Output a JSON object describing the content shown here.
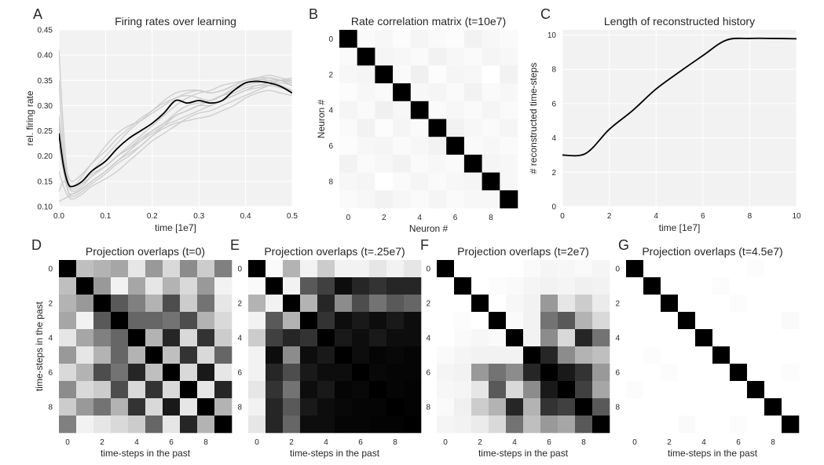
{
  "chart_data": [
    {
      "panel": "A",
      "type": "line",
      "title": "Firing rates over learning",
      "xlabel": "time [1e7]",
      "ylabel": "rel. firing rate",
      "xlim": [
        0.0,
        0.5
      ],
      "ylim": [
        0.1,
        0.45
      ],
      "xticks": [
        "0.0",
        "0.1",
        "0.2",
        "0.3",
        "0.4",
        "0.5"
      ],
      "yticks": [
        "0.10",
        "0.15",
        "0.20",
        "0.25",
        "0.30",
        "0.35",
        "0.40",
        "0.45"
      ],
      "grid": true,
      "x": [
        0.0,
        0.01,
        0.02,
        0.03,
        0.05,
        0.07,
        0.1,
        0.125,
        0.15,
        0.175,
        0.2,
        0.225,
        0.25,
        0.275,
        0.3,
        0.325,
        0.35,
        0.375,
        0.4,
        0.425,
        0.45,
        0.475,
        0.5
      ],
      "series": [
        {
          "role": "mean",
          "color": "#000000",
          "values": [
            0.245,
            0.18,
            0.145,
            0.14,
            0.15,
            0.17,
            0.19,
            0.215,
            0.235,
            0.25,
            0.265,
            0.285,
            0.31,
            0.305,
            0.31,
            0.305,
            0.31,
            0.33,
            0.345,
            0.348,
            0.345,
            0.338,
            0.325
          ]
        },
        {
          "role": "neuron",
          "color": "#c8c8c8",
          "values": [
            0.41,
            0.25,
            0.15,
            0.135,
            0.145,
            0.16,
            0.18,
            0.2,
            0.215,
            0.235,
            0.25,
            0.265,
            0.285,
            0.3,
            0.305,
            0.31,
            0.32,
            0.325,
            0.335,
            0.34,
            0.34,
            0.335,
            0.33
          ]
        },
        {
          "role": "neuron",
          "color": "#c8c8c8",
          "values": [
            0.35,
            0.21,
            0.13,
            0.12,
            0.13,
            0.145,
            0.165,
            0.185,
            0.2,
            0.22,
            0.24,
            0.26,
            0.28,
            0.29,
            0.3,
            0.3,
            0.31,
            0.32,
            0.33,
            0.335,
            0.34,
            0.345,
            0.34
          ]
        },
        {
          "role": "neuron",
          "color": "#c8c8c8",
          "values": [
            0.28,
            0.2,
            0.16,
            0.15,
            0.165,
            0.185,
            0.22,
            0.245,
            0.26,
            0.27,
            0.285,
            0.3,
            0.315,
            0.32,
            0.315,
            0.31,
            0.32,
            0.335,
            0.345,
            0.35,
            0.355,
            0.35,
            0.34
          ]
        },
        {
          "role": "neuron",
          "color": "#c8c8c8",
          "values": [
            0.22,
            0.17,
            0.145,
            0.14,
            0.15,
            0.17,
            0.2,
            0.225,
            0.25,
            0.27,
            0.29,
            0.305,
            0.315,
            0.325,
            0.33,
            0.325,
            0.33,
            0.34,
            0.35,
            0.355,
            0.36,
            0.355,
            0.35
          ]
        },
        {
          "role": "neuron",
          "color": "#c8c8c8",
          "values": [
            0.17,
            0.14,
            0.12,
            0.115,
            0.125,
            0.14,
            0.155,
            0.17,
            0.19,
            0.21,
            0.23,
            0.245,
            0.26,
            0.275,
            0.285,
            0.29,
            0.3,
            0.31,
            0.32,
            0.33,
            0.34,
            0.35,
            0.345
          ]
        },
        {
          "role": "neuron",
          "color": "#c8c8c8",
          "values": [
            0.11,
            0.115,
            0.12,
            0.125,
            0.135,
            0.15,
            0.17,
            0.19,
            0.21,
            0.23,
            0.25,
            0.265,
            0.28,
            0.29,
            0.3,
            0.31,
            0.32,
            0.33,
            0.34,
            0.345,
            0.35,
            0.35,
            0.345
          ]
        },
        {
          "role": "neuron",
          "color": "#c8c8c8",
          "values": [
            0.27,
            0.19,
            0.15,
            0.14,
            0.15,
            0.165,
            0.18,
            0.2,
            0.22,
            0.24,
            0.26,
            0.28,
            0.3,
            0.315,
            0.325,
            0.33,
            0.34,
            0.345,
            0.35,
            0.352,
            0.35,
            0.34,
            0.33
          ]
        },
        {
          "role": "neuron",
          "color": "#c8c8c8",
          "values": [
            0.13,
            0.15,
            0.14,
            0.13,
            0.14,
            0.16,
            0.18,
            0.2,
            0.215,
            0.23,
            0.245,
            0.26,
            0.27,
            0.28,
            0.29,
            0.3,
            0.31,
            0.32,
            0.33,
            0.34,
            0.345,
            0.35,
            0.355
          ]
        },
        {
          "role": "neuron",
          "color": "#c8c8c8",
          "values": [
            0.24,
            0.17,
            0.13,
            0.125,
            0.135,
            0.15,
            0.17,
            0.19,
            0.205,
            0.22,
            0.24,
            0.255,
            0.265,
            0.27,
            0.275,
            0.28,
            0.29,
            0.3,
            0.315,
            0.325,
            0.33,
            0.325,
            0.32
          ]
        },
        {
          "role": "neuron",
          "color": "#c8c8c8",
          "values": [
            0.26,
            0.19,
            0.15,
            0.14,
            0.16,
            0.185,
            0.21,
            0.235,
            0.255,
            0.275,
            0.29,
            0.31,
            0.325,
            0.33,
            0.33,
            0.325,
            0.33,
            0.34,
            0.35,
            0.355,
            0.355,
            0.35,
            0.35
          ]
        }
      ]
    },
    {
      "panel": "B",
      "type": "heatmap",
      "title": "Rate correlation matrix (t=10e7)",
      "xlabel": "Neuron #",
      "ylabel": "Neuron #",
      "xticks": [
        "0",
        "2",
        "4",
        "6",
        "8"
      ],
      "yticks": [
        "0",
        "2",
        "4",
        "6",
        "8"
      ],
      "colormap": "gray_r",
      "vmin": 0,
      "vmax": 1,
      "matrix": [
        [
          1.0,
          0.02,
          0.03,
          0.01,
          0.04,
          0.02,
          0.01,
          0.05,
          0.03,
          0.02
        ],
        [
          0.02,
          1.0,
          0.04,
          0.03,
          0.02,
          0.05,
          0.03,
          0.02,
          0.04,
          0.03
        ],
        [
          0.03,
          0.04,
          1.0,
          0.02,
          0.06,
          0.01,
          0.04,
          0.03,
          0.0,
          0.05
        ],
        [
          0.01,
          0.03,
          0.02,
          1.0,
          0.03,
          0.04,
          0.02,
          0.05,
          0.02,
          0.03
        ],
        [
          0.04,
          0.02,
          0.06,
          0.03,
          1.0,
          0.02,
          0.03,
          0.02,
          0.04,
          0.02
        ],
        [
          0.02,
          0.05,
          0.01,
          0.04,
          0.02,
          1.0,
          0.05,
          0.03,
          0.02,
          0.04
        ],
        [
          0.01,
          0.03,
          0.04,
          0.02,
          0.03,
          0.05,
          1.0,
          0.02,
          0.03,
          0.02
        ],
        [
          0.05,
          0.02,
          0.03,
          0.05,
          0.02,
          0.03,
          0.02,
          1.0,
          0.04,
          0.03
        ],
        [
          0.03,
          0.04,
          0.0,
          0.02,
          0.04,
          0.02,
          0.03,
          0.04,
          1.0,
          0.03
        ],
        [
          0.02,
          0.03,
          0.05,
          0.03,
          0.02,
          0.04,
          0.02,
          0.03,
          0.03,
          1.0
        ]
      ]
    },
    {
      "panel": "C",
      "type": "line",
      "title": "Length of reconstructed history",
      "xlabel": "time [1e7]",
      "ylabel": "# reconstructed time-steps",
      "xlim": [
        0,
        10
      ],
      "ylim": [
        0,
        10.3
      ],
      "xticks": [
        "0",
        "2",
        "4",
        "6",
        "8",
        "10"
      ],
      "yticks": [
        "0",
        "2",
        "4",
        "6",
        "8",
        "10"
      ],
      "grid": true,
      "x": [
        0,
        1,
        2,
        3,
        4,
        5,
        6,
        7,
        8,
        9,
        10
      ],
      "series": [
        {
          "color": "#000000",
          "values": [
            3.0,
            3.1,
            4.5,
            5.6,
            6.85,
            7.85,
            8.8,
            9.7,
            9.8,
            9.8,
            9.78
          ]
        }
      ]
    },
    {
      "panel": "D",
      "type": "heatmap",
      "title": "Projection overlaps (t=0)",
      "xlabel": "time-steps in the past",
      "ylabel": "time-steps in the past",
      "xticks": [
        "0",
        "2",
        "4",
        "6",
        "8"
      ],
      "yticks": [
        "0",
        "2",
        "4",
        "6",
        "8"
      ],
      "colormap": "gray_r",
      "vmin": 0,
      "vmax": 1,
      "matrix": [
        [
          1.0,
          0.25,
          0.3,
          0.35,
          0.1,
          0.4,
          0.15,
          0.45,
          0.2,
          0.5
        ],
        [
          0.25,
          1.0,
          0.4,
          0.05,
          0.35,
          0.1,
          0.3,
          0.15,
          0.4,
          0.05
        ],
        [
          0.3,
          0.4,
          1.0,
          0.65,
          0.5,
          0.3,
          0.7,
          0.2,
          0.55,
          0.1
        ],
        [
          0.35,
          0.05,
          0.65,
          1.0,
          0.6,
          0.6,
          0.55,
          0.7,
          0.3,
          0.15
        ],
        [
          0.1,
          0.35,
          0.5,
          0.6,
          1.0,
          0.3,
          0.85,
          0.15,
          0.8,
          0.2
        ],
        [
          0.4,
          0.1,
          0.3,
          0.6,
          0.3,
          1.0,
          0.25,
          0.8,
          0.15,
          0.6
        ],
        [
          0.15,
          0.3,
          0.7,
          0.55,
          0.85,
          0.25,
          1.0,
          0.15,
          0.9,
          0.1
        ],
        [
          0.45,
          0.15,
          0.2,
          0.7,
          0.15,
          0.8,
          0.15,
          1.0,
          0.1,
          0.85
        ],
        [
          0.2,
          0.4,
          0.55,
          0.3,
          0.8,
          0.15,
          0.9,
          0.1,
          1.0,
          0.3
        ],
        [
          0.5,
          0.05,
          0.1,
          0.15,
          0.2,
          0.6,
          0.1,
          0.85,
          0.3,
          1.0
        ]
      ]
    },
    {
      "panel": "E",
      "type": "heatmap",
      "title": "Projection overlaps (t=.25e7)",
      "xlabel": "time-steps in the past",
      "ylabel": "",
      "xticks": [
        "0",
        "2",
        "4",
        "6",
        "8"
      ],
      "yticks": [
        "0",
        "2",
        "4",
        "6",
        "8"
      ],
      "colormap": "gray_r",
      "vmin": 0,
      "vmax": 1,
      "matrix": [
        [
          1.0,
          0.02,
          0.3,
          0.05,
          0.2,
          0.05,
          0.05,
          0.1,
          0.05,
          0.1
        ],
        [
          0.02,
          1.0,
          0.05,
          0.65,
          0.75,
          0.95,
          0.85,
          0.8,
          0.85,
          0.85
        ],
        [
          0.3,
          0.05,
          1.0,
          0.3,
          0.85,
          0.45,
          0.7,
          0.55,
          0.65,
          0.6
        ],
        [
          0.05,
          0.65,
          0.3,
          1.0,
          0.8,
          0.95,
          0.9,
          0.95,
          0.9,
          0.95
        ],
        [
          0.2,
          0.75,
          0.85,
          0.8,
          1.0,
          0.9,
          0.95,
          0.9,
          0.95,
          0.95
        ],
        [
          0.05,
          0.95,
          0.45,
          0.95,
          0.9,
          1.0,
          0.95,
          0.98,
          0.97,
          0.98
        ],
        [
          0.05,
          0.85,
          0.7,
          0.9,
          0.95,
          0.95,
          1.0,
          0.97,
          0.98,
          0.98
        ],
        [
          0.1,
          0.8,
          0.55,
          0.95,
          0.9,
          0.98,
          0.97,
          1.0,
          0.98,
          0.99
        ],
        [
          0.05,
          0.85,
          0.65,
          0.9,
          0.95,
          0.97,
          0.98,
          0.98,
          1.0,
          0.99
        ],
        [
          0.1,
          0.85,
          0.6,
          0.95,
          0.95,
          0.98,
          0.98,
          0.99,
          0.99,
          1.0
        ]
      ]
    },
    {
      "panel": "F",
      "type": "heatmap",
      "title": "Projection overlaps (t=2e7)",
      "xlabel": "time-steps in the past",
      "ylabel": "",
      "xticks": [
        "0",
        "2",
        "4",
        "6",
        "8"
      ],
      "yticks": [
        "0",
        "2",
        "4",
        "6",
        "8"
      ],
      "colormap": "gray_r",
      "vmin": 0,
      "vmax": 1,
      "matrix": [
        [
          1.0,
          0.0,
          0.0,
          0.0,
          0.0,
          0.02,
          0.04,
          0.03,
          0.02,
          0.04
        ],
        [
          0.0,
          1.0,
          0.0,
          0.01,
          0.02,
          0.04,
          0.05,
          0.04,
          0.06,
          0.05
        ],
        [
          0.0,
          0.0,
          1.0,
          0.0,
          0.03,
          0.05,
          0.4,
          0.1,
          0.2,
          0.08
        ],
        [
          0.0,
          0.01,
          0.0,
          1.0,
          0.02,
          0.05,
          0.55,
          0.65,
          0.3,
          0.15
        ],
        [
          0.0,
          0.02,
          0.03,
          0.02,
          1.0,
          0.05,
          0.45,
          0.15,
          0.85,
          0.55
        ],
        [
          0.02,
          0.04,
          0.05,
          0.05,
          0.05,
          1.0,
          0.85,
          0.45,
          0.3,
          0.25
        ],
        [
          0.04,
          0.05,
          0.4,
          0.55,
          0.45,
          0.85,
          1.0,
          0.9,
          0.8,
          0.4
        ],
        [
          0.03,
          0.04,
          0.1,
          0.65,
          0.15,
          0.45,
          0.9,
          1.0,
          0.75,
          0.35
        ],
        [
          0.02,
          0.06,
          0.2,
          0.3,
          0.85,
          0.3,
          0.8,
          0.75,
          1.0,
          0.65
        ],
        [
          0.04,
          0.05,
          0.08,
          0.15,
          0.55,
          0.25,
          0.4,
          0.35,
          0.65,
          1.0
        ]
      ]
    },
    {
      "panel": "G",
      "type": "heatmap",
      "title": "Projection overlaps (t=4.5e7)",
      "xlabel": "time-steps in the past",
      "ylabel": "",
      "xticks": [
        "0",
        "2",
        "4",
        "6",
        "8"
      ],
      "yticks": [
        "0",
        "2",
        "4",
        "6",
        "8"
      ],
      "colormap": "gray_r",
      "vmin": 0,
      "vmax": 1,
      "matrix": [
        [
          1.0,
          0.0,
          0.0,
          0.0,
          0.0,
          0.0,
          0.0,
          0.01,
          0.0,
          0.0
        ],
        [
          0.0,
          1.0,
          0.0,
          0.0,
          0.0,
          0.01,
          0.0,
          0.0,
          0.0,
          0.0
        ],
        [
          0.0,
          0.0,
          1.0,
          0.0,
          0.0,
          0.0,
          0.01,
          0.0,
          0.0,
          0.0
        ],
        [
          0.0,
          0.0,
          0.0,
          1.0,
          0.0,
          0.0,
          0.0,
          0.0,
          0.0,
          0.02
        ],
        [
          0.0,
          0.0,
          0.0,
          0.0,
          1.0,
          0.0,
          0.0,
          0.0,
          0.0,
          0.0
        ],
        [
          0.0,
          0.01,
          0.0,
          0.0,
          0.0,
          1.0,
          0.0,
          0.0,
          0.0,
          0.0
        ],
        [
          0.0,
          0.0,
          0.01,
          0.0,
          0.0,
          0.0,
          1.0,
          0.0,
          0.0,
          0.01
        ],
        [
          0.01,
          0.0,
          0.0,
          0.0,
          0.0,
          0.0,
          0.0,
          1.0,
          0.0,
          0.0
        ],
        [
          0.0,
          0.0,
          0.0,
          0.0,
          0.0,
          0.0,
          0.0,
          0.0,
          1.0,
          0.0
        ],
        [
          0.0,
          0.0,
          0.0,
          0.02,
          0.0,
          0.0,
          0.01,
          0.0,
          0.0,
          1.0
        ]
      ]
    }
  ]
}
